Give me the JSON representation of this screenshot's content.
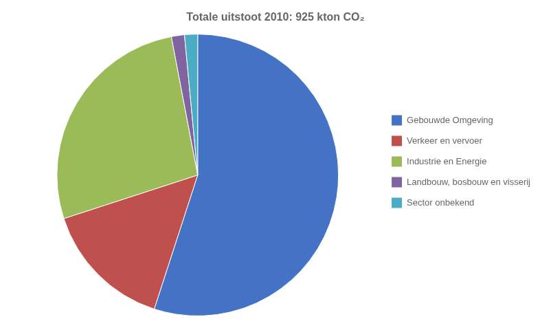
{
  "chart_data": {
    "type": "pie",
    "title": "Totale uitstoot 2010: 925 kton CO₂",
    "categories": [
      "Gebouwde Omgeving",
      "Verkeer en vervoer",
      "Industrie en Energie",
      "Landbouw, bosbouw en visserij",
      "Sector onbekend"
    ],
    "values": [
      55,
      15,
      27,
      1.5,
      1.5
    ],
    "colors": [
      "#4472C4",
      "#C0504D",
      "#9BBB59",
      "#8064A2",
      "#4BACC6"
    ],
    "legend": "right"
  }
}
